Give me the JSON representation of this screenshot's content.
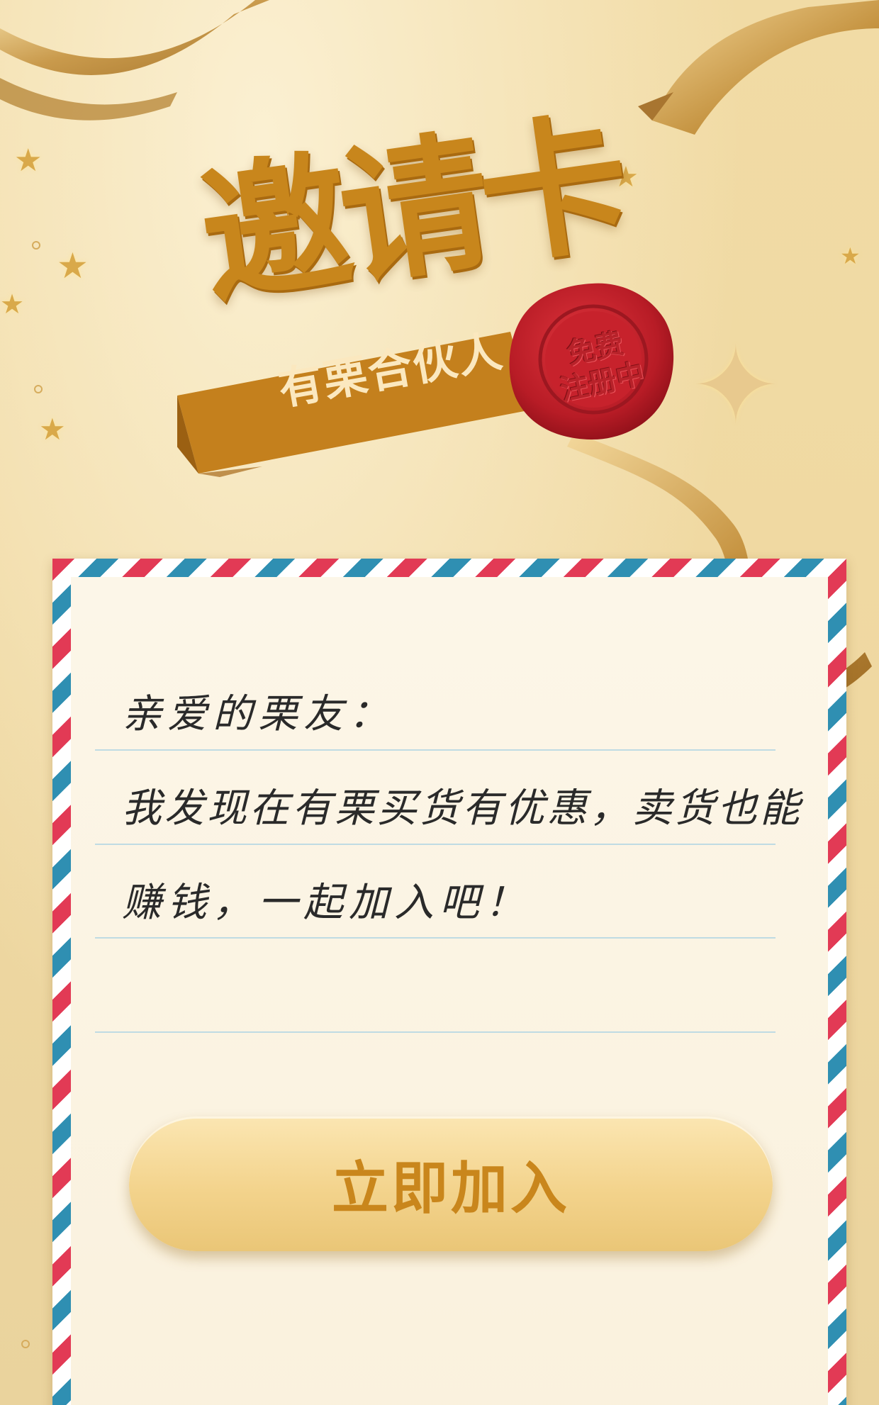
{
  "header": {
    "title": "邀请卡",
    "banner_label": "有栗合伙人",
    "seal_line1": "免费",
    "seal_line2": "注册中"
  },
  "letter": {
    "greeting": "亲爱的栗友：",
    "body_line1": "我发现在有栗买货有优惠，卖货也能",
    "body_line2": "赚钱，一起加入吧！"
  },
  "actions": {
    "join_label": "立即加入"
  },
  "colors": {
    "gold": "#c8861c",
    "background": "#f1dba5",
    "seal_red": "#c11e28",
    "airmail_red": "#e23a55",
    "airmail_blue": "#2f8fb2"
  }
}
